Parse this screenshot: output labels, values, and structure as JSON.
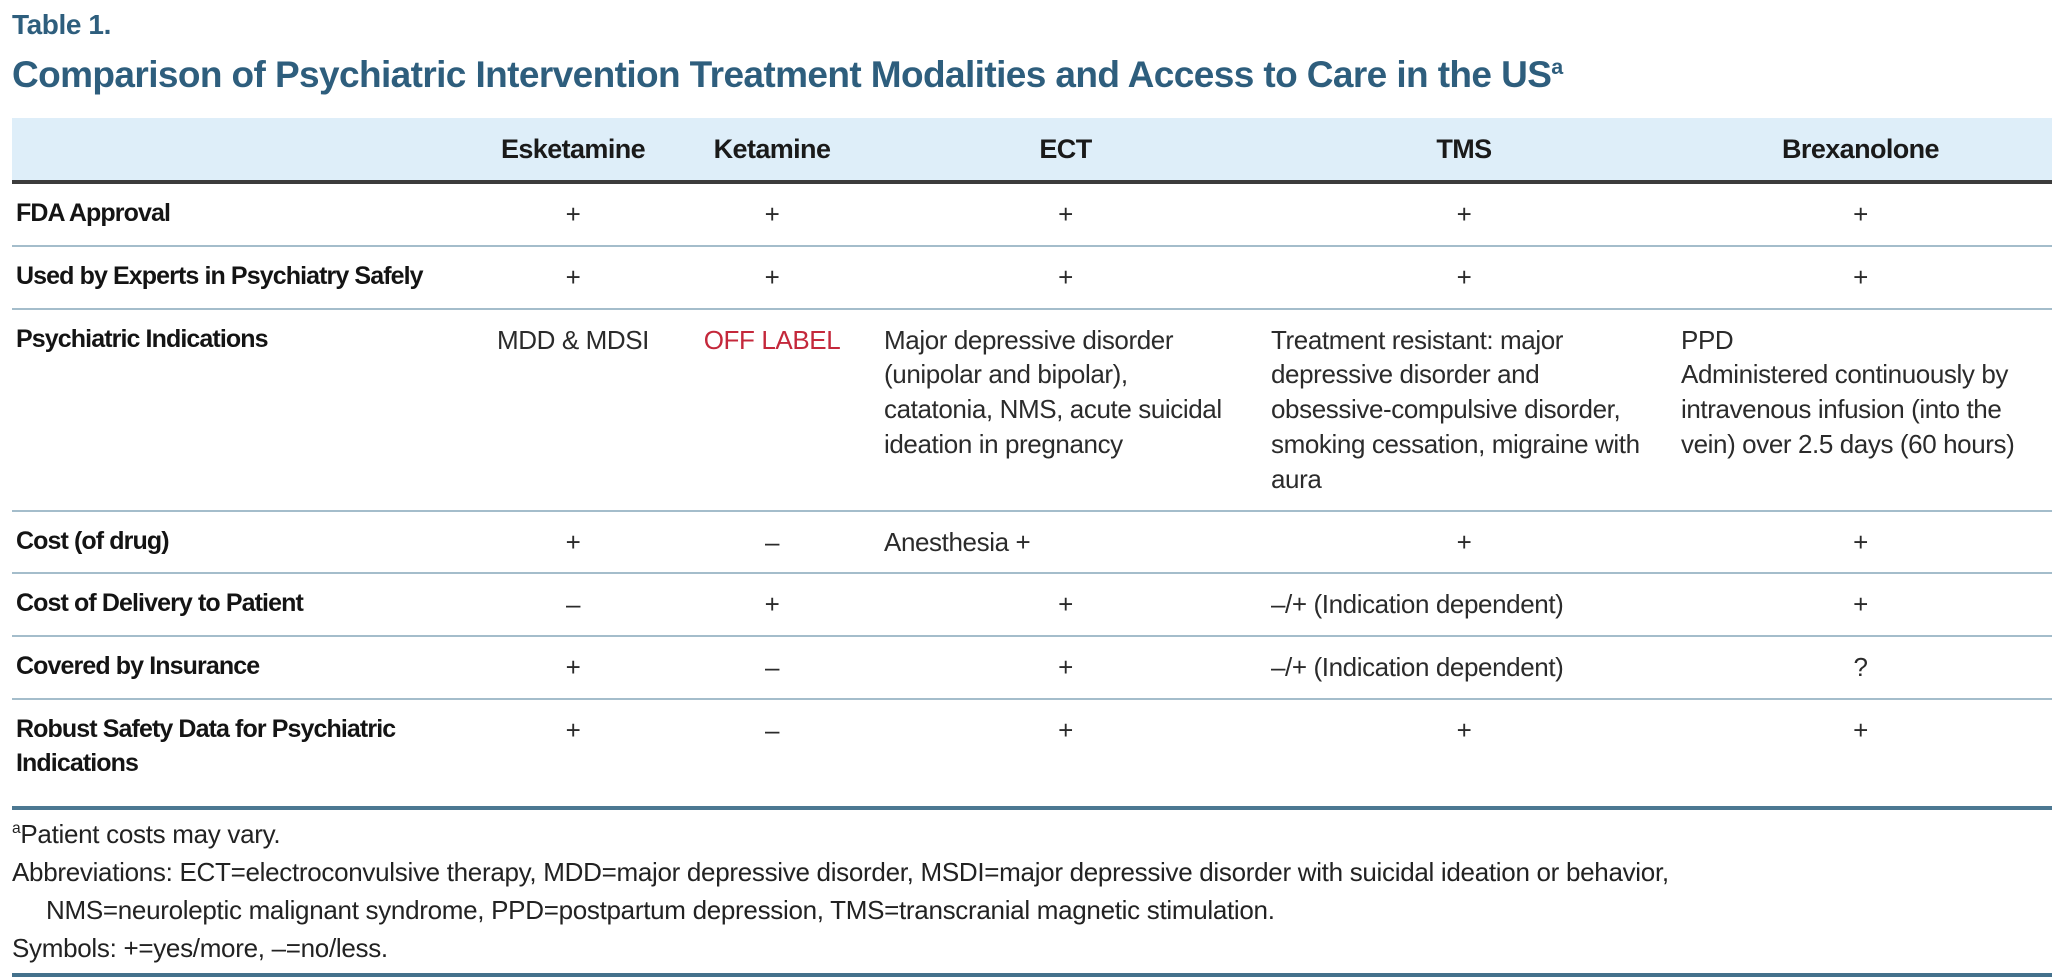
{
  "page": {
    "table_label": "Table 1.",
    "title": "Comparison of Psychiatric Intervention Treatment Modalities and Access to Care in the US",
    "title_footnote_marker": "a"
  },
  "columns": {
    "row_header": "",
    "esketamine": "Esketamine",
    "ketamine": "Ketamine",
    "ect": "ECT",
    "tms": "TMS",
    "brexanolone": "Brexanolone"
  },
  "rows": {
    "fda": {
      "label": "FDA Approval",
      "esketamine": "+",
      "ketamine": "+",
      "ect": "+",
      "tms": "+",
      "brexanolone": "+"
    },
    "experts": {
      "label": "Used by Experts in Psychiatry Safely",
      "esketamine": "+",
      "ketamine": "+",
      "ect": "+",
      "tms": "+",
      "brexanolone": "+"
    },
    "indications": {
      "label": "Psychiatric Indications",
      "esketamine": "MDD & MDSI",
      "ketamine": "OFF LABEL",
      "ect": "Major depressive disorder (unipolar and bipolar), catatonia, NMS, acute suicidal ideation in pregnancy",
      "tms": "Treatment resistant: major depressive disorder and obsessive-compulsive disorder, smoking cessation, migraine with aura",
      "brexanolone": "PPD\nAdministered continuously by intravenous infusion (into the vein) over 2.5 days (60 hours)"
    },
    "cost_drug": {
      "label": "Cost (of drug)",
      "esketamine": "+",
      "ketamine": "–",
      "ect": "Anesthesia +",
      "tms": "+",
      "brexanolone": "+"
    },
    "cost_delivery": {
      "label": "Cost of Delivery to Patient",
      "esketamine": "–",
      "ketamine": "+",
      "ect": "+",
      "tms": "–/+ (Indication dependent)",
      "brexanolone": "+"
    },
    "insurance": {
      "label": "Covered by Insurance",
      "esketamine": "+",
      "ketamine": "–",
      "ect": "+",
      "tms": "–/+ (Indication dependent)",
      "brexanolone": "?"
    },
    "safety": {
      "label": "Robust Safety Data for Psychiatric\nIndications",
      "esketamine": "+",
      "ketamine": "–",
      "ect": "+",
      "tms": "+",
      "brexanolone": "+"
    }
  },
  "footnotes": {
    "patient_costs_marker": "a",
    "patient_costs": "Patient costs may vary.",
    "abbreviations_line1": "Abbreviations: ECT=electroconvulsive therapy, MDD=major depressive disorder, MSDI=major depressive disorder with suicidal ideation or behavior,",
    "abbreviations_line2": "NMS=neuroleptic malignant syndrome, PPD=postpartum depression, TMS=transcranial magnetic stimulation.",
    "symbols": "Symbols: +=yes/more, –=no/less."
  },
  "colors": {
    "title_teal": "#2e5e7d",
    "header_row_bg": "#deeef9",
    "off_label_red": "#c4283b",
    "header_rule_dark": "#3c3c3c",
    "row_rule_light": "#a4bdcb",
    "accent_rule_blue": "#4c7892"
  }
}
